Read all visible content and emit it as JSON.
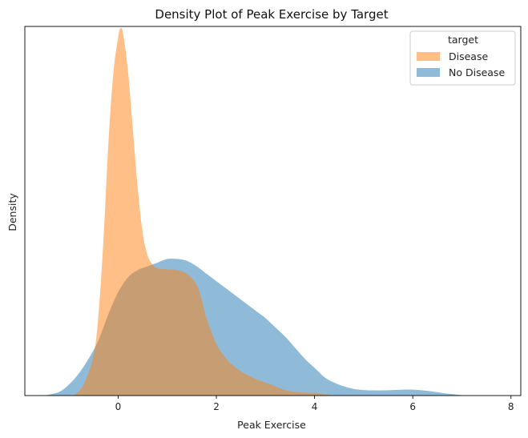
{
  "chart_data": {
    "type": "area",
    "title": "Density Plot of Peak Exercise by Target",
    "xlabel": "Peak Exercise",
    "ylabel": "Density",
    "xlim": [
      -1.9,
      8.2
    ],
    "ylim": [
      0,
      1.0
    ],
    "x_ticks": [
      0,
      2,
      4,
      6,
      8
    ],
    "y_ticks_shown": false,
    "grid": false,
    "legend": {
      "title": "target",
      "placement": "top-right",
      "entries": [
        "Disease",
        "No Disease"
      ]
    },
    "series": [
      {
        "name": "No Disease",
        "color": "#1f77b4",
        "opacity": 0.5,
        "x": [
          -1.5,
          -1.2,
          -1.0,
          -0.8,
          -0.6,
          -0.4,
          -0.2,
          0.0,
          0.2,
          0.4,
          0.6,
          0.8,
          1.0,
          1.2,
          1.4,
          1.6,
          1.8,
          2.0,
          2.2,
          2.4,
          2.6,
          2.8,
          3.0,
          3.2,
          3.4,
          3.6,
          3.8,
          4.0,
          4.2,
          4.4,
          4.6,
          4.8,
          5.0,
          5.2,
          5.4,
          5.6,
          5.8,
          6.0,
          6.2,
          6.4,
          6.6,
          6.8,
          7.0,
          7.2
        ],
        "y": [
          0.0,
          0.01,
          0.03,
          0.06,
          0.1,
          0.15,
          0.22,
          0.28,
          0.32,
          0.34,
          0.35,
          0.36,
          0.37,
          0.37,
          0.365,
          0.35,
          0.33,
          0.31,
          0.29,
          0.27,
          0.25,
          0.23,
          0.21,
          0.185,
          0.16,
          0.13,
          0.1,
          0.075,
          0.05,
          0.035,
          0.025,
          0.018,
          0.015,
          0.014,
          0.014,
          0.015,
          0.016,
          0.016,
          0.014,
          0.011,
          0.007,
          0.004,
          0.001,
          0.0
        ]
      },
      {
        "name": "Disease",
        "color": "#ff7f0e",
        "opacity": 0.5,
        "x": [
          -0.9,
          -0.7,
          -0.5,
          -0.4,
          -0.3,
          -0.2,
          -0.1,
          0.0,
          0.05,
          0.1,
          0.2,
          0.3,
          0.4,
          0.5,
          0.6,
          0.7,
          0.8,
          0.9,
          1.0,
          1.2,
          1.4,
          1.6,
          1.7,
          1.8,
          2.0,
          2.2,
          2.4,
          2.6,
          2.8,
          3.0,
          3.2,
          3.4,
          3.6,
          3.8,
          4.0,
          4.2,
          4.4
        ],
        "y": [
          0.0,
          0.03,
          0.11,
          0.22,
          0.42,
          0.68,
          0.87,
          0.97,
          0.995,
          0.98,
          0.88,
          0.72,
          0.56,
          0.44,
          0.38,
          0.355,
          0.345,
          0.343,
          0.342,
          0.34,
          0.33,
          0.3,
          0.26,
          0.21,
          0.14,
          0.1,
          0.075,
          0.058,
          0.045,
          0.035,
          0.025,
          0.015,
          0.01,
          0.008,
          0.007,
          0.004,
          0.0
        ]
      }
    ]
  }
}
